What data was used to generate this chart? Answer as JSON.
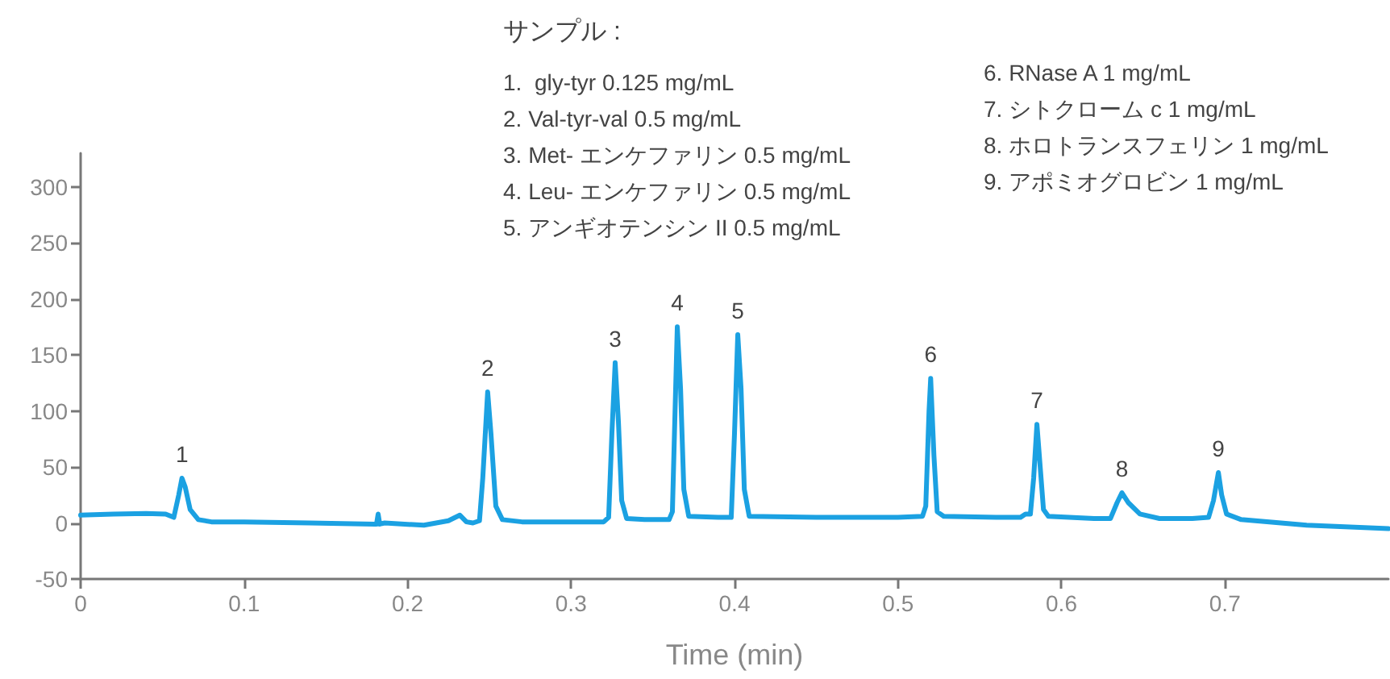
{
  "chart_data": {
    "type": "line",
    "title": "サンプル :",
    "xlabel": "Time (min)",
    "annotations": [
      "1.  gly-tyr 0.125 mg/mL",
      "2. Val-tyr-val 0.5 mg/mL",
      "3. Met- エンケファリン 0.5 mg/mL",
      "4. Leu- エンケファリン 0.5 mg/mL",
      "5. アンギオテンシン II 0.5 mg/mL",
      "6. RNase A 1 mg/mL",
      "7. シトクローム c 1 mg/mL",
      "8. ホロトランスフェリン 1 mg/mL",
      "9. アポミオグロビン 1 mg/mL",
      {
        "text": "1",
        "x": 0.062,
        "y": 40
      },
      {
        "text": "2",
        "x": 0.249,
        "y": 117
      },
      {
        "text": "3",
        "x": 0.327,
        "y": 143
      },
      {
        "text": "4",
        "x": 0.365,
        "y": 175
      },
      {
        "text": "5",
        "x": 0.402,
        "y": 168
      },
      {
        "text": "6",
        "x": 0.52,
        "y": 129
      },
      {
        "text": "7",
        "x": 0.585,
        "y": 88
      },
      {
        "text": "8",
        "x": 0.637,
        "y": 27
      },
      {
        "text": "9",
        "x": 0.696,
        "y": 45
      }
    ],
    "x": [
      0,
      0.02,
      0.04,
      0.052,
      0.057,
      0.06,
      0.062,
      0.064,
      0.067,
      0.072,
      0.08,
      0.1,
      0.14,
      0.18,
      0.181,
      0.182,
      0.183,
      0.186,
      0.21,
      0.225,
      0.232,
      0.236,
      0.24,
      0.244,
      0.246,
      0.249,
      0.251,
      0.254,
      0.258,
      0.27,
      0.3,
      0.32,
      0.323,
      0.325,
      0.327,
      0.329,
      0.331,
      0.334,
      0.345,
      0.36,
      0.362,
      0.364,
      0.365,
      0.367,
      0.369,
      0.372,
      0.39,
      0.398,
      0.4,
      0.402,
      0.404,
      0.406,
      0.409,
      0.45,
      0.5,
      0.515,
      0.517,
      0.519,
      0.52,
      0.522,
      0.524,
      0.528,
      0.56,
      0.575,
      0.578,
      0.581,
      0.583,
      0.585,
      0.587,
      0.589,
      0.592,
      0.62,
      0.63,
      0.634,
      0.637,
      0.641,
      0.648,
      0.66,
      0.68,
      0.69,
      0.693,
      0.696,
      0.698,
      0.701,
      0.71,
      0.75,
      0.8
    ],
    "series": [
      {
        "color": "#1ba1e2",
        "values": [
          7,
          8,
          8.5,
          8,
          5,
          25,
          40,
          32,
          12,
          3,
          1,
          1,
          0,
          -1,
          -1,
          8,
          -1,
          0,
          -2,
          2,
          7,
          1,
          0,
          2,
          40,
          117,
          80,
          15,
          3,
          1,
          1,
          1,
          5,
          80,
          143,
          90,
          20,
          4,
          3,
          3,
          10,
          120,
          175,
          120,
          30,
          6,
          5,
          5,
          80,
          168,
          120,
          30,
          6,
          5,
          5,
          6,
          15,
          100,
          129,
          60,
          10,
          6,
          5,
          5,
          8,
          8,
          40,
          88,
          50,
          12,
          6,
          4,
          4,
          18,
          27,
          18,
          8,
          4,
          4,
          5,
          20,
          45,
          25,
          8,
          3,
          -2,
          -5
        ]
      }
    ],
    "xlim": [
      0,
      0.8
    ],
    "xticks": [
      0,
      0.1,
      0.2,
      0.3,
      0.4,
      0.5,
      0.6,
      0.7
    ],
    "ylim": [
      -50,
      330
    ],
    "yticks": [
      -50,
      0,
      50,
      100,
      150,
      200,
      250,
      300
    ],
    "grid": false,
    "marker": "none",
    "line_style": "solid"
  }
}
